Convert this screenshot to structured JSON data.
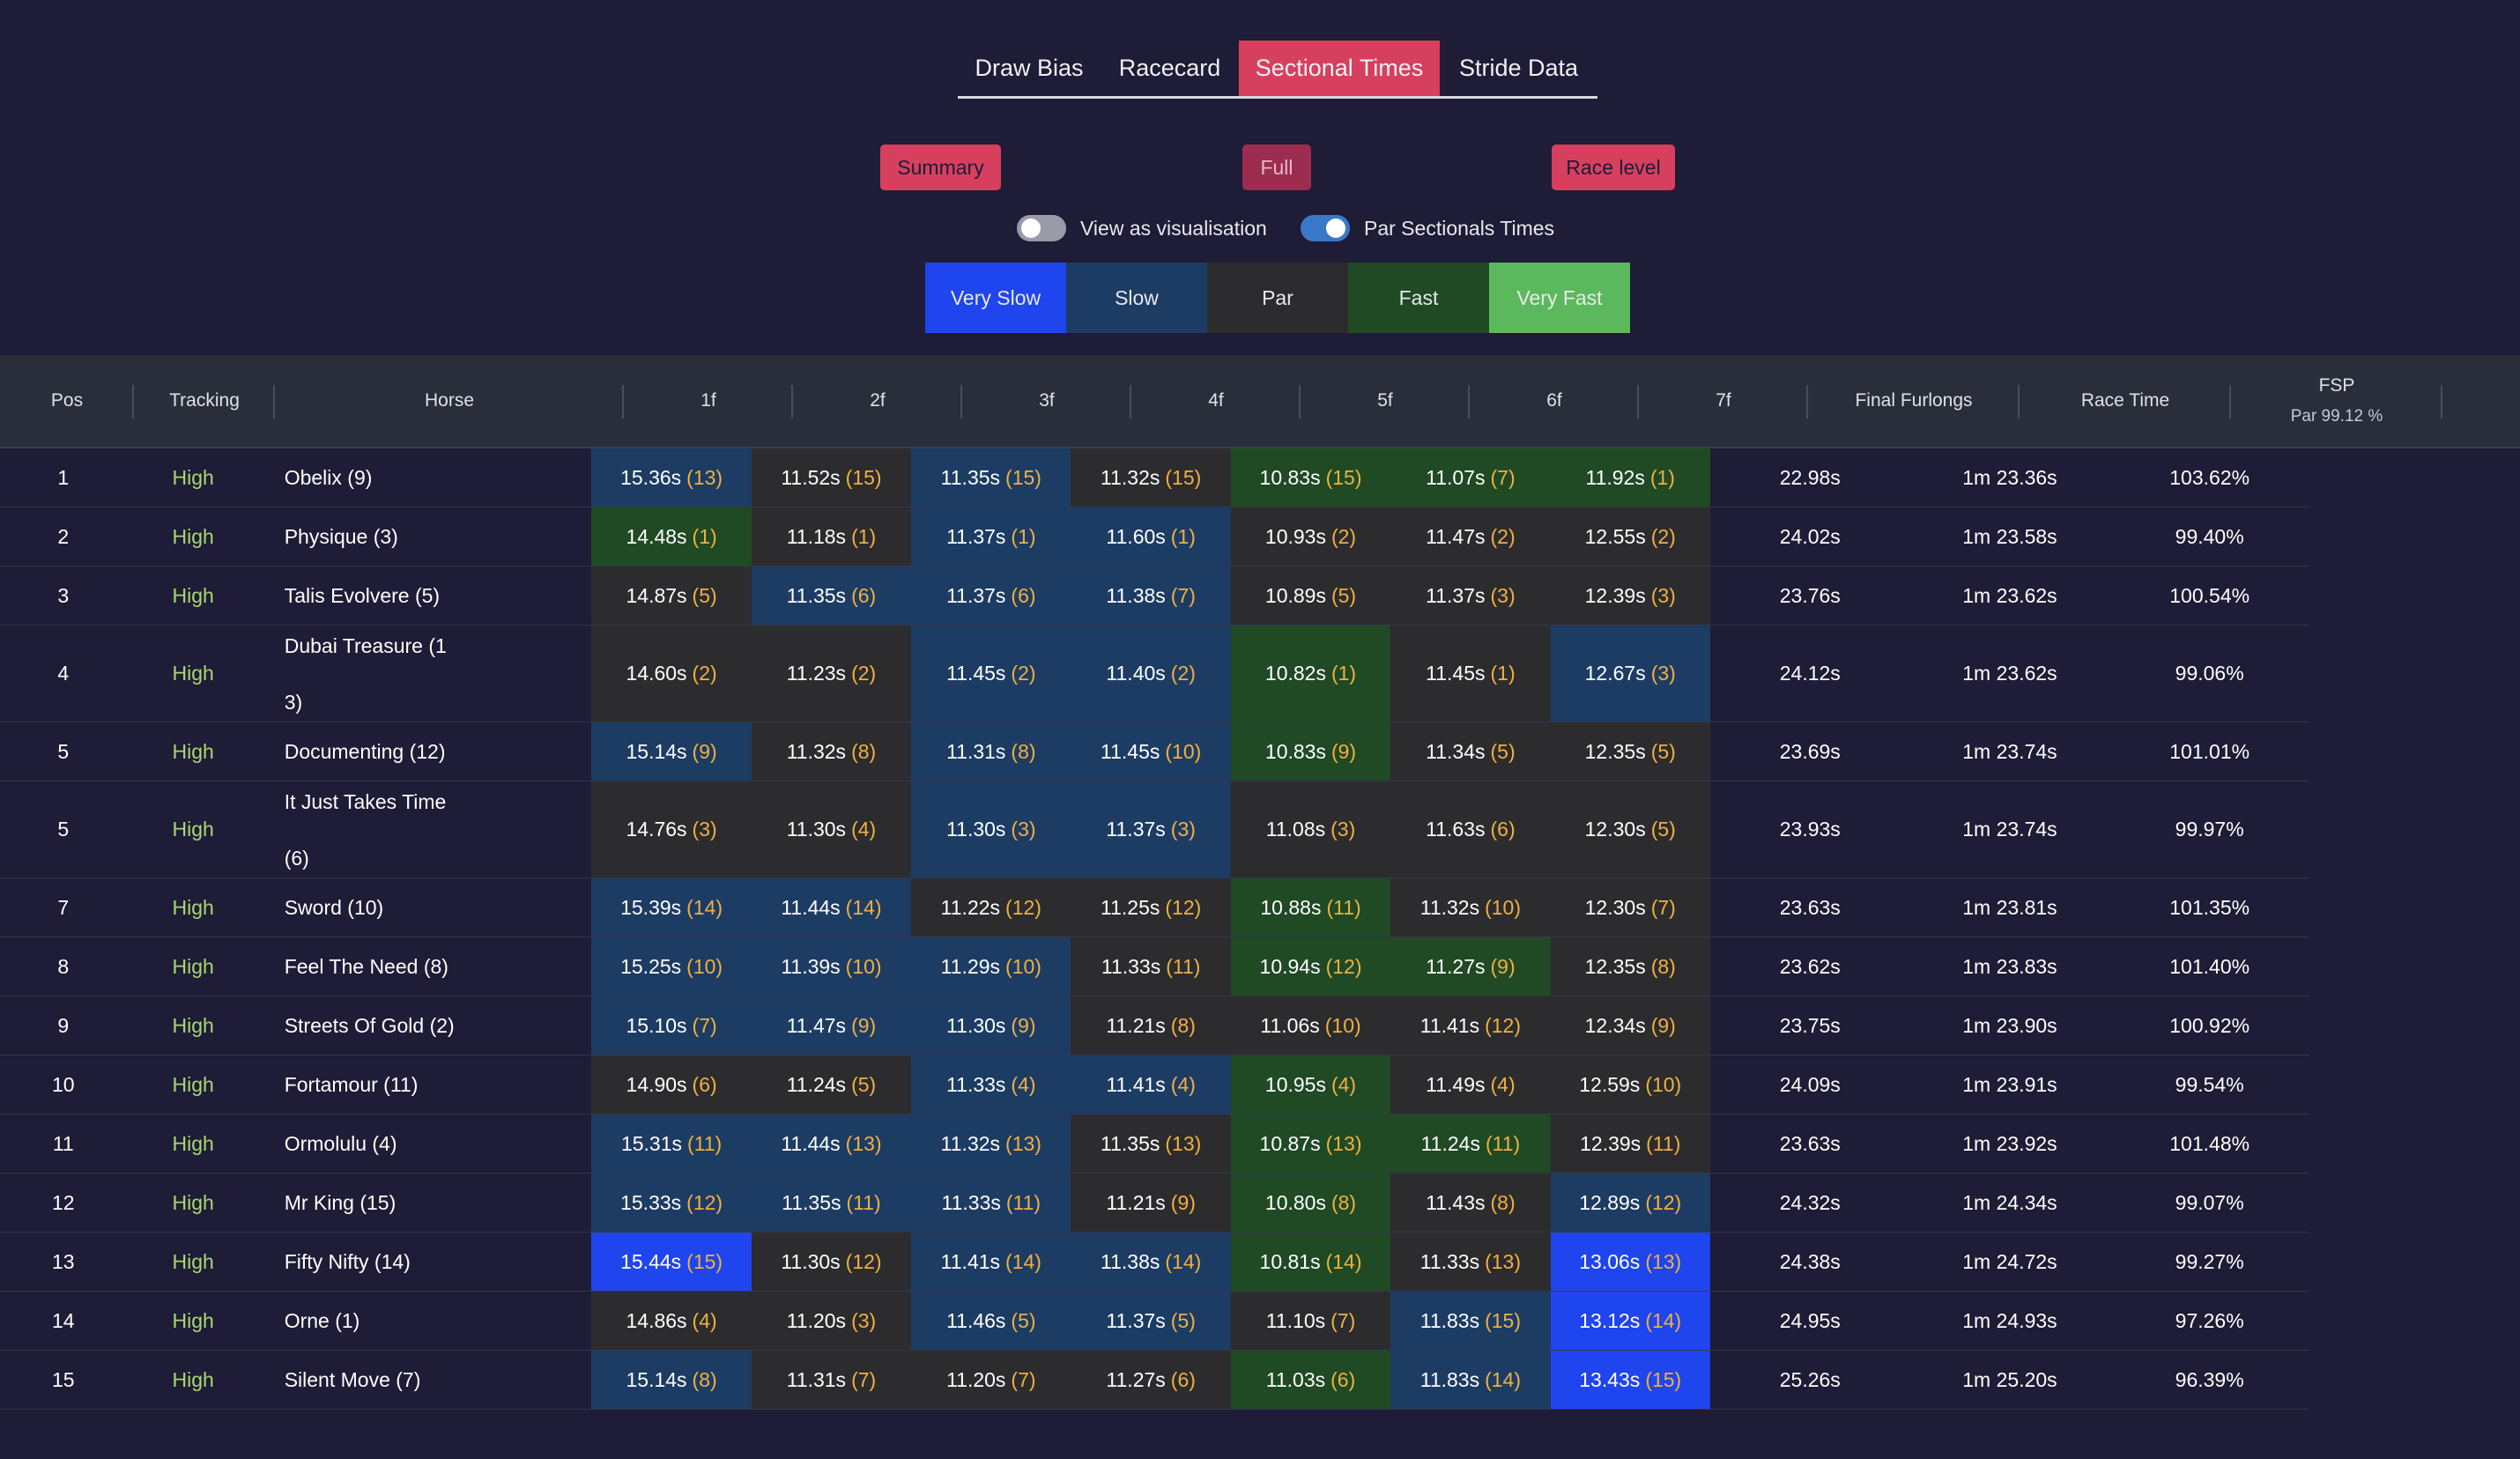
{
  "tabs": [
    {
      "label": "Draw Bias",
      "active": false
    },
    {
      "label": "Racecard",
      "active": false
    },
    {
      "label": "Sectional Times",
      "active": true
    },
    {
      "label": "Stride Data",
      "active": false
    }
  ],
  "modes": {
    "summary": "Summary",
    "full": "Full",
    "race_level": "Race level"
  },
  "toggles": {
    "visualisation": {
      "label": "View as visualisation",
      "on": false
    },
    "par": {
      "label": "Par Sectionals Times",
      "on": true
    }
  },
  "legend": [
    "Very Slow",
    "Slow",
    "Par",
    "Fast",
    "Very Fast"
  ],
  "colors": {
    "very_slow": "#1f45ee",
    "slow": "#1d3c64",
    "par": "#2c2c2e",
    "fast": "#1f4a24",
    "very_fast": "#5cb85c",
    "accent": "#d6405e",
    "rank": "#f0b040",
    "tracking": "#a8d870"
  },
  "table": {
    "headers": {
      "pos": "Pos",
      "tracking": "Tracking",
      "horse": "Horse",
      "furlongs": [
        "1f",
        "2f",
        "3f",
        "4f",
        "5f",
        "6f",
        "7f"
      ],
      "final": "Final Furlongs",
      "race_time": "Race Time",
      "fsp": "FSP",
      "fsp_sub": "Par 99.12 %"
    },
    "rows": [
      {
        "pos": "1",
        "tracking": "High",
        "horse": [
          "Obelix (9)"
        ],
        "secs": [
          [
            "15.36s",
            "(13)",
            "s"
          ],
          [
            "11.52s",
            "(15)",
            "p"
          ],
          [
            "11.35s",
            "(15)",
            "s"
          ],
          [
            "11.32s",
            "(15)",
            "p"
          ],
          [
            "10.83s",
            "(15)",
            "f"
          ],
          [
            "11.07s",
            "(7)",
            "f"
          ],
          [
            "11.92s",
            "(1)",
            "f"
          ]
        ],
        "final": "22.98s",
        "race_time": "1m 23.36s",
        "fsp": "103.62%"
      },
      {
        "pos": "2",
        "tracking": "High",
        "horse": [
          "Physique (3)"
        ],
        "secs": [
          [
            "14.48s",
            "(1)",
            "f"
          ],
          [
            "11.18s",
            "(1)",
            "p"
          ],
          [
            "11.37s",
            "(1)",
            "s"
          ],
          [
            "11.60s",
            "(1)",
            "s"
          ],
          [
            "10.93s",
            "(2)",
            "p"
          ],
          [
            "11.47s",
            "(2)",
            "p"
          ],
          [
            "12.55s",
            "(2)",
            "p"
          ]
        ],
        "final": "24.02s",
        "race_time": "1m 23.58s",
        "fsp": "99.40%"
      },
      {
        "pos": "3",
        "tracking": "High",
        "horse": [
          "Talis Evolvere (5)"
        ],
        "secs": [
          [
            "14.87s",
            "(5)",
            "p"
          ],
          [
            "11.35s",
            "(6)",
            "s"
          ],
          [
            "11.37s",
            "(6)",
            "s"
          ],
          [
            "11.38s",
            "(7)",
            "s"
          ],
          [
            "10.89s",
            "(5)",
            "p"
          ],
          [
            "11.37s",
            "(3)",
            "p"
          ],
          [
            "12.39s",
            "(3)",
            "p"
          ]
        ],
        "final": "23.76s",
        "race_time": "1m 23.62s",
        "fsp": "100.54%"
      },
      {
        "pos": "4",
        "tracking": "High",
        "horse": [
          "Dubai Treasure (1",
          "3)"
        ],
        "secs": [
          [
            "14.60s",
            "(2)",
            "p"
          ],
          [
            "11.23s",
            "(2)",
            "p"
          ],
          [
            "11.45s",
            "(2)",
            "s"
          ],
          [
            "11.40s",
            "(2)",
            "s"
          ],
          [
            "10.82s",
            "(1)",
            "f"
          ],
          [
            "11.45s",
            "(1)",
            "p"
          ],
          [
            "12.67s",
            "(3)",
            "s"
          ]
        ],
        "final": "24.12s",
        "race_time": "1m 23.62s",
        "fsp": "99.06%"
      },
      {
        "pos": "5",
        "tracking": "High",
        "horse": [
          "Documenting (12)"
        ],
        "secs": [
          [
            "15.14s",
            "(9)",
            "s"
          ],
          [
            "11.32s",
            "(8)",
            "p"
          ],
          [
            "11.31s",
            "(8)",
            "s"
          ],
          [
            "11.45s",
            "(10)",
            "s"
          ],
          [
            "10.83s",
            "(9)",
            "f"
          ],
          [
            "11.34s",
            "(5)",
            "p"
          ],
          [
            "12.35s",
            "(5)",
            "p"
          ]
        ],
        "final": "23.69s",
        "race_time": "1m 23.74s",
        "fsp": "101.01%"
      },
      {
        "pos": "5",
        "tracking": "High",
        "horse": [
          "It Just Takes Time",
          "(6)"
        ],
        "secs": [
          [
            "14.76s",
            "(3)",
            "p"
          ],
          [
            "11.30s",
            "(4)",
            "p"
          ],
          [
            "11.30s",
            "(3)",
            "s"
          ],
          [
            "11.37s",
            "(3)",
            "s"
          ],
          [
            "11.08s",
            "(3)",
            "p"
          ],
          [
            "11.63s",
            "(6)",
            "p"
          ],
          [
            "12.30s",
            "(5)",
            "p"
          ]
        ],
        "final": "23.93s",
        "race_time": "1m 23.74s",
        "fsp": "99.97%"
      },
      {
        "pos": "7",
        "tracking": "High",
        "horse": [
          "Sword (10)"
        ],
        "secs": [
          [
            "15.39s",
            "(14)",
            "s"
          ],
          [
            "11.44s",
            "(14)",
            "s"
          ],
          [
            "11.22s",
            "(12)",
            "p"
          ],
          [
            "11.25s",
            "(12)",
            "p"
          ],
          [
            "10.88s",
            "(11)",
            "f"
          ],
          [
            "11.32s",
            "(10)",
            "p"
          ],
          [
            "12.30s",
            "(7)",
            "p"
          ]
        ],
        "final": "23.63s",
        "race_time": "1m 23.81s",
        "fsp": "101.35%"
      },
      {
        "pos": "8",
        "tracking": "High",
        "horse": [
          "Feel The Need (8)"
        ],
        "secs": [
          [
            "15.25s",
            "(10)",
            "s"
          ],
          [
            "11.39s",
            "(10)",
            "s"
          ],
          [
            "11.29s",
            "(10)",
            "s"
          ],
          [
            "11.33s",
            "(11)",
            "p"
          ],
          [
            "10.94s",
            "(12)",
            "f"
          ],
          [
            "11.27s",
            "(9)",
            "f"
          ],
          [
            "12.35s",
            "(8)",
            "p"
          ]
        ],
        "final": "23.62s",
        "race_time": "1m 23.83s",
        "fsp": "101.40%"
      },
      {
        "pos": "9",
        "tracking": "High",
        "horse": [
          "Streets Of Gold (2)"
        ],
        "secs": [
          [
            "15.10s",
            "(7)",
            "s"
          ],
          [
            "11.47s",
            "(9)",
            "s"
          ],
          [
            "11.30s",
            "(9)",
            "s"
          ],
          [
            "11.21s",
            "(8)",
            "p"
          ],
          [
            "11.06s",
            "(10)",
            "p"
          ],
          [
            "11.41s",
            "(12)",
            "p"
          ],
          [
            "12.34s",
            "(9)",
            "p"
          ]
        ],
        "final": "23.75s",
        "race_time": "1m 23.90s",
        "fsp": "100.92%"
      },
      {
        "pos": "10",
        "tracking": "High",
        "horse": [
          "Fortamour (11)"
        ],
        "secs": [
          [
            "14.90s",
            "(6)",
            "p"
          ],
          [
            "11.24s",
            "(5)",
            "p"
          ],
          [
            "11.33s",
            "(4)",
            "s"
          ],
          [
            "11.41s",
            "(4)",
            "s"
          ],
          [
            "10.95s",
            "(4)",
            "f"
          ],
          [
            "11.49s",
            "(4)",
            "p"
          ],
          [
            "12.59s",
            "(10)",
            "p"
          ]
        ],
        "final": "24.09s",
        "race_time": "1m 23.91s",
        "fsp": "99.54%"
      },
      {
        "pos": "11",
        "tracking": "High",
        "horse": [
          "Ormolulu (4)"
        ],
        "secs": [
          [
            "15.31s",
            "(11)",
            "s"
          ],
          [
            "11.44s",
            "(13)",
            "s"
          ],
          [
            "11.32s",
            "(13)",
            "s"
          ],
          [
            "11.35s",
            "(13)",
            "p"
          ],
          [
            "10.87s",
            "(13)",
            "f"
          ],
          [
            "11.24s",
            "(11)",
            "f"
          ],
          [
            "12.39s",
            "(11)",
            "p"
          ]
        ],
        "final": "23.63s",
        "race_time": "1m 23.92s",
        "fsp": "101.48%"
      },
      {
        "pos": "12",
        "tracking": "High",
        "horse": [
          "Mr King (15)"
        ],
        "secs": [
          [
            "15.33s",
            "(12)",
            "s"
          ],
          [
            "11.35s",
            "(11)",
            "s"
          ],
          [
            "11.33s",
            "(11)",
            "s"
          ],
          [
            "11.21s",
            "(9)",
            "p"
          ],
          [
            "10.80s",
            "(8)",
            "f"
          ],
          [
            "11.43s",
            "(8)",
            "p"
          ],
          [
            "12.89s",
            "(12)",
            "s"
          ]
        ],
        "final": "24.32s",
        "race_time": "1m 24.34s",
        "fsp": "99.07%"
      },
      {
        "pos": "13",
        "tracking": "High",
        "horse": [
          "Fifty Nifty (14)"
        ],
        "secs": [
          [
            "15.44s",
            "(15)",
            "vs"
          ],
          [
            "11.30s",
            "(12)",
            "p"
          ],
          [
            "11.41s",
            "(14)",
            "s"
          ],
          [
            "11.38s",
            "(14)",
            "s"
          ],
          [
            "10.81s",
            "(14)",
            "f"
          ],
          [
            "11.33s",
            "(13)",
            "p"
          ],
          [
            "13.06s",
            "(13)",
            "vs"
          ]
        ],
        "final": "24.38s",
        "race_time": "1m 24.72s",
        "fsp": "99.27%"
      },
      {
        "pos": "14",
        "tracking": "High",
        "horse": [
          "Orne (1)"
        ],
        "secs": [
          [
            "14.86s",
            "(4)",
            "p"
          ],
          [
            "11.20s",
            "(3)",
            "p"
          ],
          [
            "11.46s",
            "(5)",
            "s"
          ],
          [
            "11.37s",
            "(5)",
            "s"
          ],
          [
            "11.10s",
            "(7)",
            "p"
          ],
          [
            "11.83s",
            "(15)",
            "s"
          ],
          [
            "13.12s",
            "(14)",
            "vs"
          ]
        ],
        "final": "24.95s",
        "race_time": "1m 24.93s",
        "fsp": "97.26%"
      },
      {
        "pos": "15",
        "tracking": "High",
        "horse": [
          "Silent Move (7)"
        ],
        "secs": [
          [
            "15.14s",
            "(8)",
            "s"
          ],
          [
            "11.31s",
            "(7)",
            "p"
          ],
          [
            "11.20s",
            "(7)",
            "p"
          ],
          [
            "11.27s",
            "(6)",
            "p"
          ],
          [
            "11.03s",
            "(6)",
            "f"
          ],
          [
            "11.83s",
            "(14)",
            "s"
          ],
          [
            "13.43s",
            "(15)",
            "vs"
          ]
        ],
        "final": "25.26s",
        "race_time": "1m 25.20s",
        "fsp": "96.39%"
      }
    ]
  }
}
